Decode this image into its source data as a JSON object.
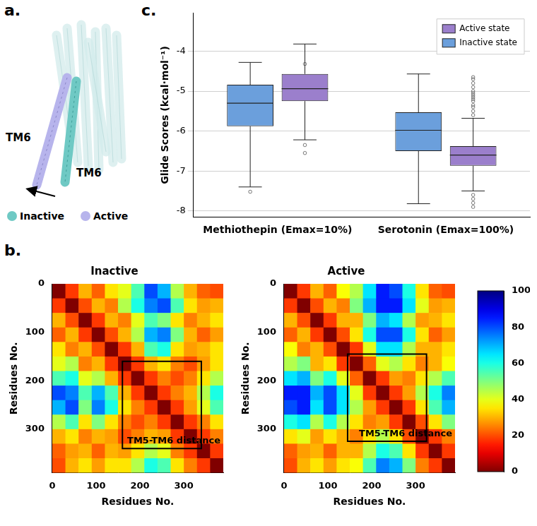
{
  "panel_a": {
    "letter": "a.",
    "helix_labels": [
      "TM6",
      "TM6"
    ],
    "legend": [
      {
        "name": "Inactive",
        "color": "#6fc9c4"
      },
      {
        "name": "Active",
        "color": "#b7b4ec"
      }
    ]
  },
  "chart_data": [
    {
      "type": "box",
      "letter": "c.",
      "ylabel": "Glide Scores (kcal·mol⁻¹)",
      "categories": [
        "Methiothepin (Emax=10%)",
        "Serotonin (Emax=100%)"
      ],
      "ylim": [
        -8.15,
        -3.05
      ],
      "yticks": [
        -8,
        -7,
        -6,
        -5,
        -4
      ],
      "grid": true,
      "legend": "upper right",
      "series": [
        {
          "name": "Inactive state",
          "color": "#6b9fdc",
          "boxes": [
            {
              "whisker_low": -7.4,
              "q1": -5.88,
              "median": -5.3,
              "q3": -4.84,
              "whisker_high": -4.28,
              "outliers": [
                -7.52
              ]
            },
            {
              "whisker_low": -7.82,
              "q1": -6.5,
              "median": -5.98,
              "q3": -5.53,
              "whisker_high": -4.57,
              "outliers": []
            }
          ]
        },
        {
          "name": "Active state",
          "color": "#9b7fcc",
          "boxes": [
            {
              "whisker_low": -6.22,
              "q1": -5.25,
              "median": -4.94,
              "q3": -4.57,
              "whisker_high": -3.82,
              "outliers": [
                -4.32,
                -6.35,
                -6.55
              ]
            },
            {
              "whisker_low": -7.5,
              "q1": -6.87,
              "median": -6.6,
              "q3": -6.38,
              "whisker_high": -5.68,
              "outliers": [
                -4.65,
                -4.7,
                -4.8,
                -4.9,
                -5.0,
                -5.05,
                -5.1,
                -5.15,
                -5.2,
                -5.25,
                -5.35,
                -5.4,
                -5.5,
                -5.6,
                -7.6,
                -7.7,
                -7.8,
                -7.9
              ]
            }
          ]
        }
      ]
    },
    {
      "type": "heatmap",
      "letter": "b.",
      "title": "Inactive",
      "xlabel": "Residues No.",
      "ylabel": "Residues No.",
      "xlim": [
        0,
        390
      ],
      "ylim": [
        0,
        390
      ],
      "xticks": [
        0,
        100,
        200,
        300
      ],
      "yticks": [
        0,
        100,
        200,
        300
      ],
      "bin_edges": [
        0,
        30,
        60,
        90,
        120,
        150,
        180,
        210,
        240,
        270,
        300,
        330,
        360,
        390
      ],
      "cells": [
        [
          0,
          18,
          30,
          22,
          35,
          40,
          55,
          80,
          70,
          45,
          30,
          22,
          20
        ],
        [
          18,
          0,
          20,
          30,
          25,
          45,
          60,
          75,
          80,
          55,
          35,
          28,
          30
        ],
        [
          30,
          20,
          0,
          18,
          30,
          25,
          40,
          55,
          50,
          35,
          25,
          30,
          35
        ],
        [
          22,
          30,
          18,
          0,
          20,
          30,
          45,
          70,
          75,
          50,
          30,
          22,
          28
        ],
        [
          35,
          25,
          30,
          20,
          0,
          18,
          30,
          55,
          60,
          35,
          28,
          30,
          35
        ],
        [
          40,
          45,
          25,
          30,
          18,
          0,
          18,
          30,
          35,
          25,
          20,
          28,
          35
        ],
        [
          55,
          60,
          40,
          45,
          30,
          18,
          0,
          18,
          25,
          20,
          25,
          35,
          45
        ],
        [
          80,
          75,
          55,
          70,
          55,
          30,
          18,
          0,
          18,
          25,
          30,
          45,
          60
        ],
        [
          70,
          80,
          50,
          75,
          60,
          35,
          25,
          18,
          0,
          18,
          28,
          40,
          55
        ],
        [
          45,
          55,
          35,
          50,
          35,
          25,
          20,
          25,
          18,
          0,
          18,
          25,
          35
        ],
        [
          30,
          35,
          25,
          30,
          28,
          20,
          25,
          30,
          28,
          18,
          0,
          18,
          25
        ],
        [
          22,
          28,
          30,
          22,
          30,
          28,
          35,
          45,
          40,
          25,
          18,
          0,
          18
        ],
        [
          20,
          30,
          35,
          28,
          35,
          35,
          45,
          60,
          55,
          35,
          25,
          18,
          0
        ]
      ],
      "box": {
        "x": [
          160,
          340
        ],
        "y": [
          160,
          340
        ],
        "label": "TM5-TM6 distance"
      }
    },
    {
      "type": "heatmap",
      "title": "Active",
      "xlabel": "Residues No.",
      "ylabel": "Residues No.",
      "xlim": [
        0,
        390
      ],
      "ylim": [
        0,
        390
      ],
      "xticks": [
        0,
        100,
        200,
        300
      ],
      "yticks": [
        0,
        100,
        200,
        300
      ],
      "bin_edges": [
        0,
        30,
        60,
        90,
        120,
        150,
        180,
        210,
        240,
        270,
        300,
        330,
        360,
        390
      ],
      "cells": [
        [
          0,
          18,
          30,
          22,
          38,
          45,
          65,
          85,
          80,
          60,
          35,
          22,
          20
        ],
        [
          18,
          0,
          20,
          30,
          25,
          50,
          70,
          85,
          85,
          65,
          40,
          28,
          30
        ],
        [
          30,
          20,
          0,
          18,
          30,
          30,
          50,
          70,
          65,
          45,
          28,
          30,
          35
        ],
        [
          22,
          30,
          18,
          0,
          20,
          35,
          60,
          80,
          80,
          60,
          35,
          22,
          28
        ],
        [
          38,
          25,
          30,
          20,
          0,
          18,
          40,
          65,
          65,
          45,
          30,
          30,
          35
        ],
        [
          45,
          50,
          30,
          35,
          18,
          0,
          22,
          40,
          45,
          35,
          25,
          30,
          38
        ],
        [
          65,
          70,
          50,
          60,
          40,
          22,
          0,
          18,
          28,
          25,
          35,
          45,
          55
        ],
        [
          85,
          85,
          70,
          80,
          65,
          40,
          18,
          0,
          18,
          28,
          45,
          60,
          75
        ],
        [
          80,
          85,
          65,
          80,
          65,
          45,
          28,
          18,
          0,
          18,
          35,
          55,
          70
        ],
        [
          60,
          65,
          45,
          60,
          45,
          35,
          25,
          28,
          18,
          0,
          20,
          35,
          50
        ],
        [
          35,
          40,
          28,
          35,
          30,
          25,
          35,
          45,
          35,
          20,
          0,
          18,
          25
        ],
        [
          22,
          28,
          30,
          22,
          30,
          30,
          45,
          60,
          55,
          35,
          18,
          0,
          18
        ],
        [
          20,
          30,
          35,
          28,
          35,
          38,
          55,
          75,
          70,
          50,
          25,
          18,
          0
        ]
      ],
      "box": {
        "x": [
          145,
          325
        ],
        "y": [
          145,
          325
        ],
        "label": "TM5-TM6 distance"
      },
      "colorbar": {
        "range": [
          0,
          100
        ],
        "ticks": [
          0,
          20,
          40,
          60,
          80,
          100
        ]
      }
    }
  ]
}
